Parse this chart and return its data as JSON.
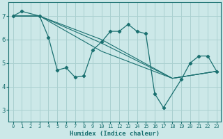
{
  "xlabel": "Humidex (Indice chaleur)",
  "ylabel": "",
  "bg_color": "#cce8e8",
  "grid_color": "#aad0d0",
  "line_color": "#1a7070",
  "marker_color": "#1a7070",
  "xlim": [
    -0.5,
    23.5
  ],
  "ylim": [
    2.5,
    7.6
  ],
  "yticks": [
    3,
    4,
    5,
    6,
    7
  ],
  "xticks": [
    0,
    1,
    2,
    3,
    4,
    5,
    6,
    7,
    8,
    9,
    10,
    11,
    12,
    13,
    14,
    15,
    16,
    17,
    18,
    19,
    20,
    21,
    22,
    23
  ],
  "series": [
    {
      "x": [
        0,
        1,
        3,
        4,
        5,
        6,
        7,
        8,
        9,
        10,
        11,
        12,
        13,
        14,
        15,
        16,
        17,
        19,
        20,
        21,
        22,
        23
      ],
      "y": [
        7.0,
        7.2,
        7.0,
        6.1,
        4.7,
        4.8,
        4.4,
        4.45,
        5.55,
        5.9,
        6.35,
        6.35,
        6.65,
        6.35,
        6.25,
        3.7,
        3.1,
        4.3,
        5.0,
        5.3,
        5.3,
        4.65
      ]
    },
    {
      "x": [
        0,
        3,
        10,
        18,
        23
      ],
      "y": [
        7.0,
        7.0,
        6.0,
        4.35,
        4.65
      ]
    },
    {
      "x": [
        0,
        3,
        10,
        18,
        23
      ],
      "y": [
        7.0,
        7.0,
        5.85,
        4.35,
        4.65
      ]
    },
    {
      "x": [
        0,
        3,
        10,
        18,
        23
      ],
      "y": [
        7.0,
        7.0,
        5.5,
        4.35,
        4.65
      ]
    }
  ]
}
